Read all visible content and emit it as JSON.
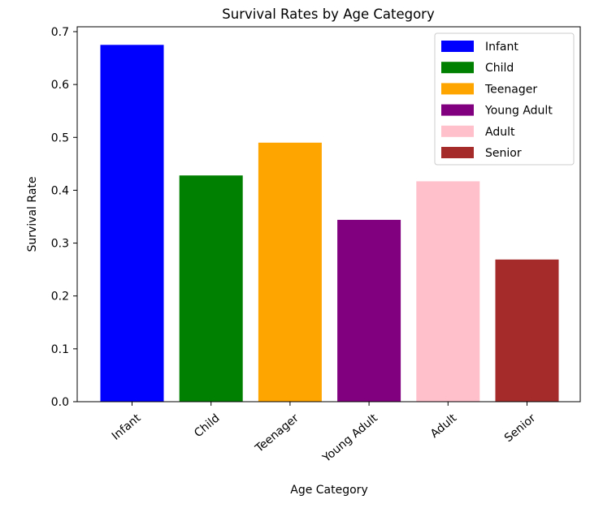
{
  "chart_data": {
    "type": "bar",
    "title": "Survival Rates by Age Category",
    "xlabel": "Age Category",
    "ylabel": "Survival Rate",
    "categories": [
      "Infant",
      "Child",
      "Teenager",
      "Young Adult",
      "Adult",
      "Senior"
    ],
    "values": [
      0.675,
      0.428,
      0.49,
      0.344,
      0.417,
      0.269
    ],
    "colors": [
      "#0000ff",
      "#008000",
      "#ffa500",
      "#800080",
      "#ffc0cb",
      "#a52a2a"
    ],
    "ylim": [
      0,
      0.7
    ],
    "yticks": [
      "0.0",
      "0.1",
      "0.2",
      "0.3",
      "0.4",
      "0.5",
      "0.6",
      "0.7"
    ],
    "grid": false,
    "legend_position": "top-right",
    "legend": [
      "Infant",
      "Child",
      "Teenager",
      "Young Adult",
      "Adult",
      "Senior"
    ]
  }
}
